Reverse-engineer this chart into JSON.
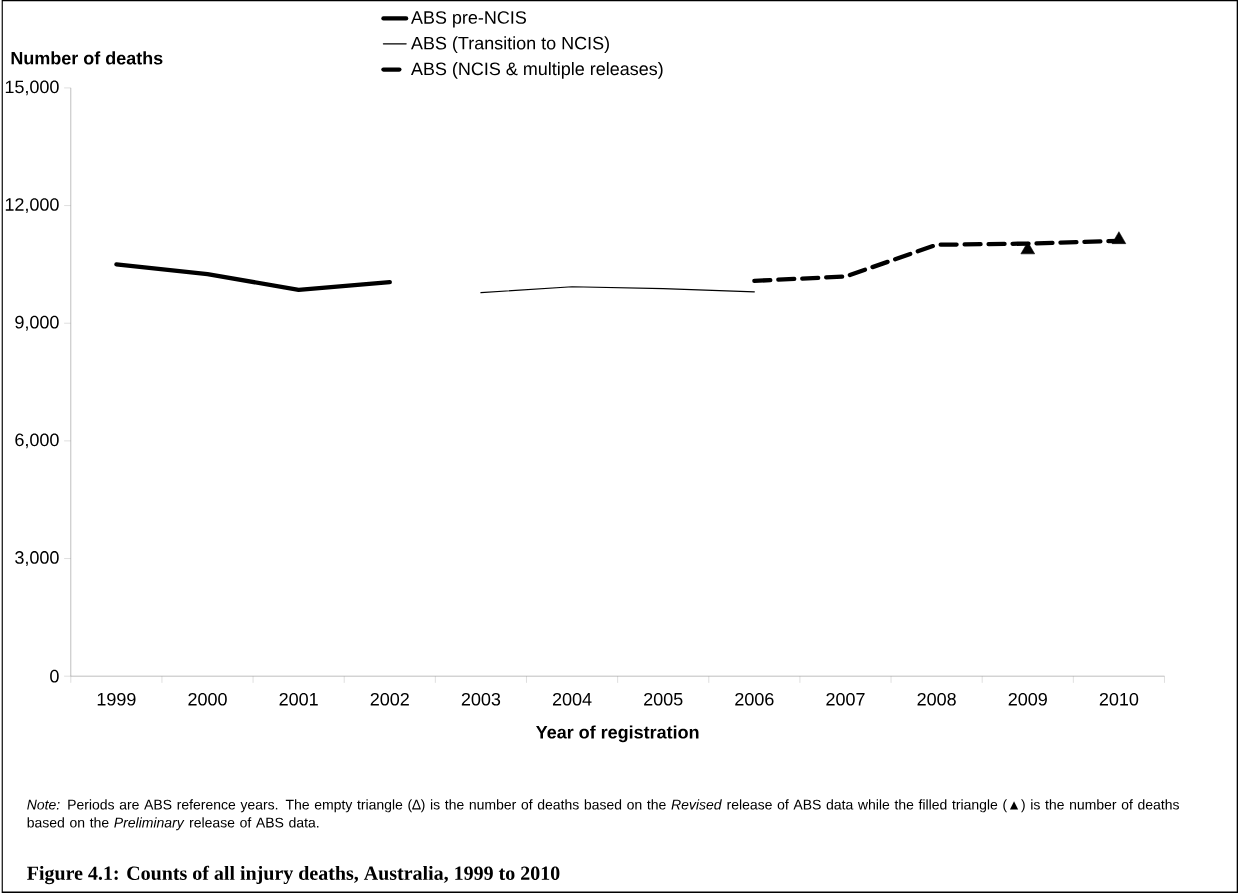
{
  "chart_data": {
    "type": "line",
    "title": "Figure 4.1: Counts of all injury deaths, Australia, 1999 to 2010",
    "xlabel": "Year of registration",
    "ylabel": "Number of deaths",
    "categories": [
      "1999",
      "2000",
      "2001",
      "2002",
      "2003",
      "2004",
      "2005",
      "2006",
      "2007",
      "2008",
      "2009",
      "2010"
    ],
    "series": [
      {
        "name": "ABS pre-NCIS",
        "color": "#000000",
        "line_style": "solid",
        "values": [
          10500,
          10250,
          9850,
          10050,
          null,
          null,
          null,
          null,
          null,
          null,
          null,
          null
        ]
      },
      {
        "name": "ABS (Transition to NCIS)",
        "color": "#000000",
        "line_style": "solid",
        "values": [
          null,
          null,
          null,
          null,
          9780,
          9930,
          9880,
          9800,
          null,
          null,
          null,
          null
        ]
      },
      {
        "name": "ABS (NCIS & multiple releases)",
        "color": "#000000",
        "line_style": "dashed",
        "values": [
          null,
          null,
          null,
          null,
          null,
          null,
          null,
          10080,
          10190,
          11000,
          11030,
          11100
        ]
      },
      {
        "type": "scatter",
        "color": "#000000",
        "marker": "triangle",
        "values": [
          null,
          null,
          null,
          null,
          null,
          null,
          null,
          null,
          null,
          null,
          10870,
          null
        ]
      },
      {
        "type": "scatter",
        "color": "#000000",
        "marker": "triangle",
        "values": [
          null,
          null,
          null,
          null,
          null,
          null,
          null,
          null,
          null,
          null,
          null,
          11130
        ]
      }
    ],
    "ylim": [
      0,
      15000
    ],
    "yticks": [
      {
        "value": 0,
        "label": "0"
      },
      {
        "value": 3000,
        "label": "3,000"
      },
      {
        "value": 6000,
        "label": "6,000"
      },
      {
        "value": 9000,
        "label": "9,000"
      },
      {
        "value": 12000,
        "label": "12,000"
      },
      {
        "value": 15000,
        "label": "15,000"
      }
    ],
    "grid": false,
    "legend": "top",
    "annotations": [
      "*Note:* Periods are ABS reference years. The empty triangle (∆) is the number of deaths based on the *Revised* release of ABS data while the filled triangle (▲) is the number of deaths based on the *Preliminary* release of ABS data."
    ]
  }
}
